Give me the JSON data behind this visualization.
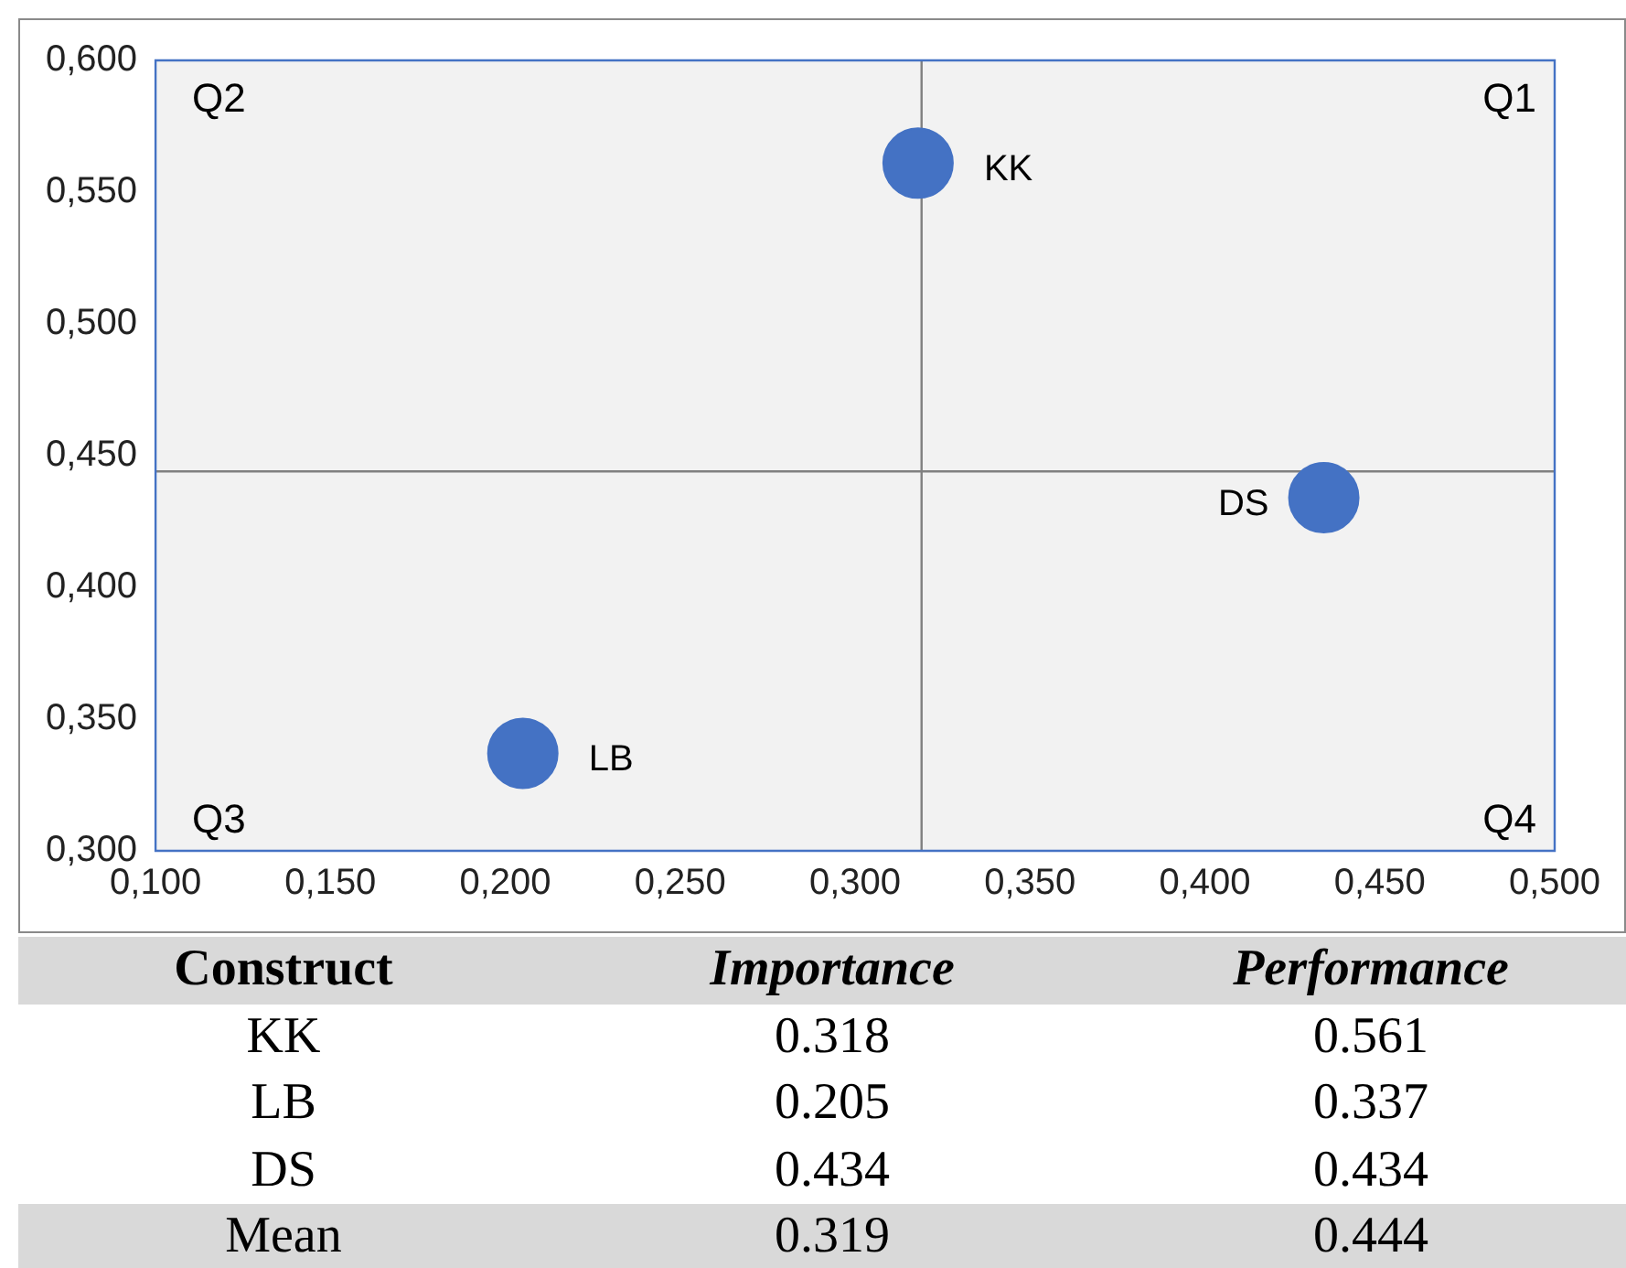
{
  "chart_data": [
    {
      "type": "scatter",
      "marker": "circle",
      "legend": false,
      "grid": false,
      "xlim": [
        0.1,
        0.5
      ],
      "xticks": [
        {
          "value": 0.1,
          "label": "0,100"
        },
        {
          "value": 0.15,
          "label": "0,150"
        },
        {
          "value": 0.2,
          "label": "0,200"
        },
        {
          "value": 0.25,
          "label": "0,250"
        },
        {
          "value": 0.3,
          "label": "0,300"
        },
        {
          "value": 0.35,
          "label": "0,350"
        },
        {
          "value": 0.4,
          "label": "0,400"
        },
        {
          "value": 0.45,
          "label": "0,450"
        },
        {
          "value": 0.5,
          "label": "0,500"
        }
      ],
      "ylim": [
        0.3,
        0.6
      ],
      "yticks": [
        {
          "value": 0.3,
          "label": "0,300"
        },
        {
          "value": 0.35,
          "label": "0,350"
        },
        {
          "value": 0.4,
          "label": "0,400"
        },
        {
          "value": 0.45,
          "label": "0,450"
        },
        {
          "value": 0.5,
          "label": "0,500"
        },
        {
          "value": 0.55,
          "label": "0,550"
        },
        {
          "value": 0.6,
          "label": "0,600"
        }
      ],
      "series": [
        {
          "name": "KK",
          "color": "#4472c4",
          "x": [
            0.318
          ],
          "values": [
            0.561
          ]
        },
        {
          "name": "LB",
          "color": "#4472c4",
          "x": [
            0.205
          ],
          "values": [
            0.337
          ]
        },
        {
          "name": "DS",
          "color": "#4472c4",
          "x": [
            0.434
          ],
          "values": [
            0.434
          ]
        }
      ],
      "ref_lines": [
        {
          "axis": "x",
          "value": 0.319,
          "color": "#808080"
        },
        {
          "axis": "y",
          "value": 0.444,
          "color": "#808080"
        }
      ],
      "annotations": [
        "Q2",
        "Q1",
        "Q3",
        "Q4"
      ]
    },
    {
      "type": "other",
      "annotations": [
        "Construct",
        "Importance",
        "Performance",
        "KK",
        "0.318",
        "0.561",
        "LB",
        "0.205",
        "0.337",
        "DS",
        "0.434",
        "0.434",
        "Mean",
        "0.319",
        "0.444"
      ]
    }
  ]
}
